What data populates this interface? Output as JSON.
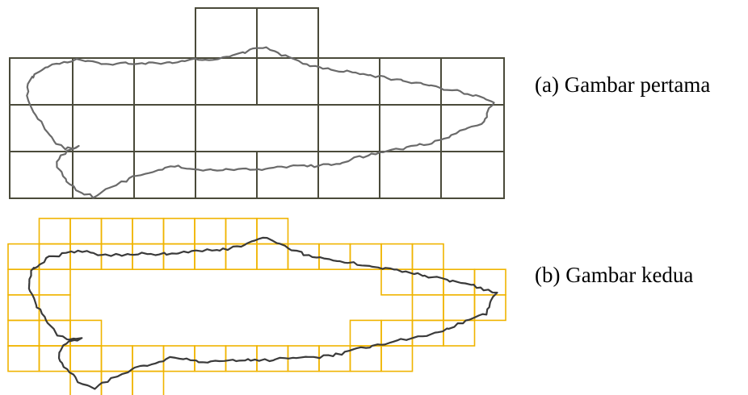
{
  "captions": {
    "first": "(a)  Gambar pertama",
    "second": "(b)  Gambar kedua"
  },
  "colors": {
    "grid_coarse": "#4a4a3a",
    "grid_fine": "#f0b400",
    "outline": "#3a3a3a",
    "outline_light": "#8a8a8a",
    "background": "#ffffff"
  }
}
